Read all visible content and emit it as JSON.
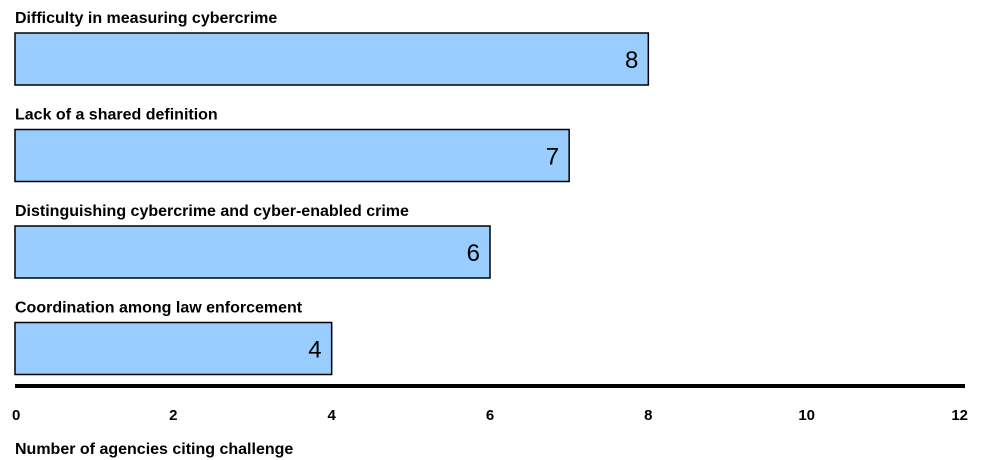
{
  "chart_data": {
    "type": "bar",
    "orientation": "horizontal",
    "categories": [
      "Difficulty in measuring cybercrime",
      "Lack of a shared definition",
      "Distinguishing cybercrime and cyber-enabled crime",
      "Coordination among law enforcement"
    ],
    "values": [
      8,
      7,
      6,
      4
    ],
    "data_labels": [
      "8",
      "7",
      "6",
      "4"
    ],
    "title": "",
    "xlabel": "Number of agencies citing challenge",
    "ylabel": "",
    "xlim": [
      0,
      12
    ],
    "x_ticks": [
      "0",
      "2",
      "4",
      "6",
      "8",
      "10",
      "12"
    ],
    "grid": false,
    "legend": "none",
    "colors": {
      "bar_fill": "#99ccff",
      "bar_stroke": "#000000",
      "axis": "#000000"
    }
  }
}
